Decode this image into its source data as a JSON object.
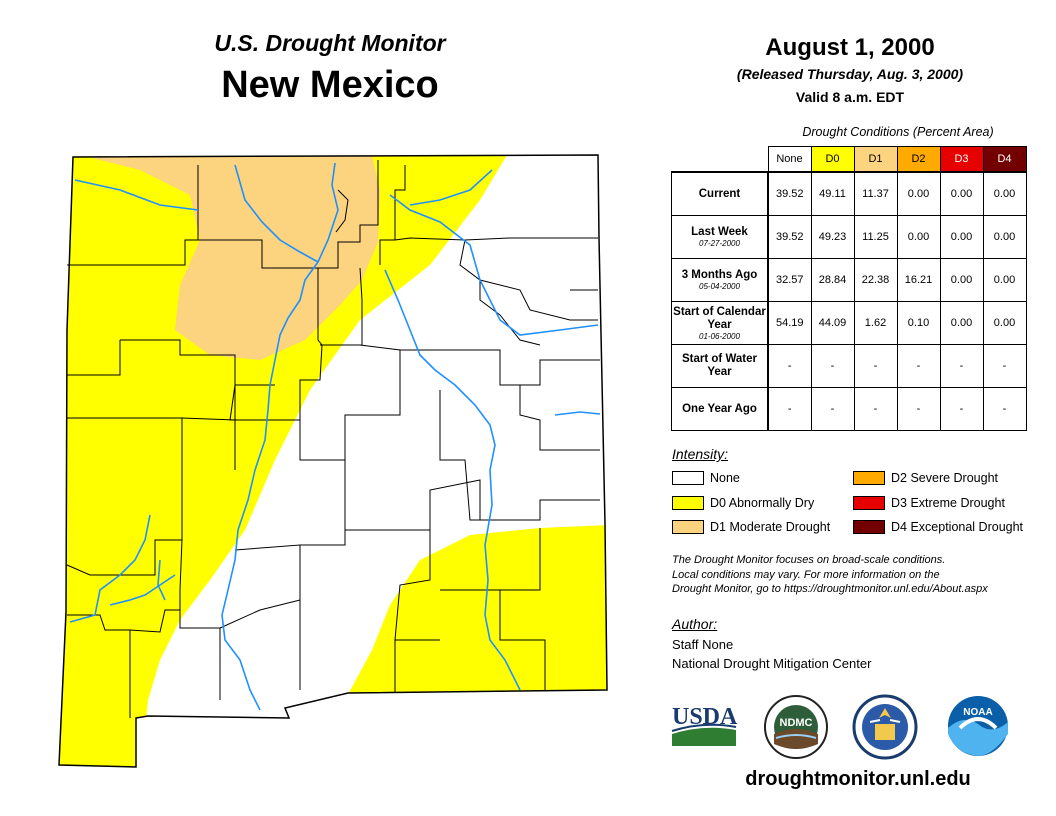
{
  "header": {
    "subtitle": "U.S. Drought Monitor",
    "state": "New Mexico",
    "date": "August 1, 2000",
    "released": "(Released Thursday, Aug. 3, 2000)",
    "valid": "Valid 8 a.m. EDT"
  },
  "table": {
    "title": "Drought Conditions (Percent Area)",
    "columns": [
      "None",
      "D0",
      "D1",
      "D2",
      "D3",
      "D4"
    ],
    "rows": [
      {
        "label": "Current",
        "sublabel": "",
        "values": [
          "39.52",
          "49.11",
          "11.37",
          "0.00",
          "0.00",
          "0.00"
        ]
      },
      {
        "label": "Last Week",
        "sublabel": "07-27-2000",
        "values": [
          "39.52",
          "49.23",
          "11.25",
          "0.00",
          "0.00",
          "0.00"
        ]
      },
      {
        "label": "3 Months Ago",
        "sublabel": "05-04-2000",
        "values": [
          "32.57",
          "28.84",
          "22.38",
          "16.21",
          "0.00",
          "0.00"
        ]
      },
      {
        "label": "Start of Calendar Year",
        "sublabel": "01-06-2000",
        "values": [
          "54.19",
          "44.09",
          "1.62",
          "0.10",
          "0.00",
          "0.00"
        ]
      },
      {
        "label": "Start of Water Year",
        "sublabel": "",
        "values": [
          "-",
          "-",
          "-",
          "-",
          "-",
          "-"
        ]
      },
      {
        "label": "One Year Ago",
        "sublabel": "",
        "values": [
          "-",
          "-",
          "-",
          "-",
          "-",
          "-"
        ]
      }
    ]
  },
  "legend": {
    "title": "Intensity:",
    "items": [
      {
        "label": "None",
        "color": "#ffffff"
      },
      {
        "label": "D0 Abnormally Dry",
        "color": "#ffff00"
      },
      {
        "label": "D1 Moderate Drought",
        "color": "#fcd37f"
      },
      {
        "label": "D2 Severe Drought",
        "color": "#ffaa00"
      },
      {
        "label": "D3 Extreme Drought",
        "color": "#e60000"
      },
      {
        "label": "D4 Exceptional Drought",
        "color": "#730000"
      }
    ]
  },
  "note": {
    "lines": [
      "The Drought Monitor focuses on broad-scale conditions.",
      "Local conditions may vary. For more information on the",
      "Drought Monitor, go to https://droughtmonitor.unl.edu/About.aspx"
    ]
  },
  "author": {
    "title": "Author:",
    "name": "Staff None",
    "org": "National Drought Mitigation Center"
  },
  "logos": {
    "usda": "USDA",
    "ndmc": "NDMC",
    "noaa": "NOAA"
  },
  "website": "droughtmonitor.unl.edu",
  "colors": {
    "none": "#ffffff",
    "d0": "#ffff00",
    "d1": "#fcd37f",
    "river": "#1e90ff"
  }
}
